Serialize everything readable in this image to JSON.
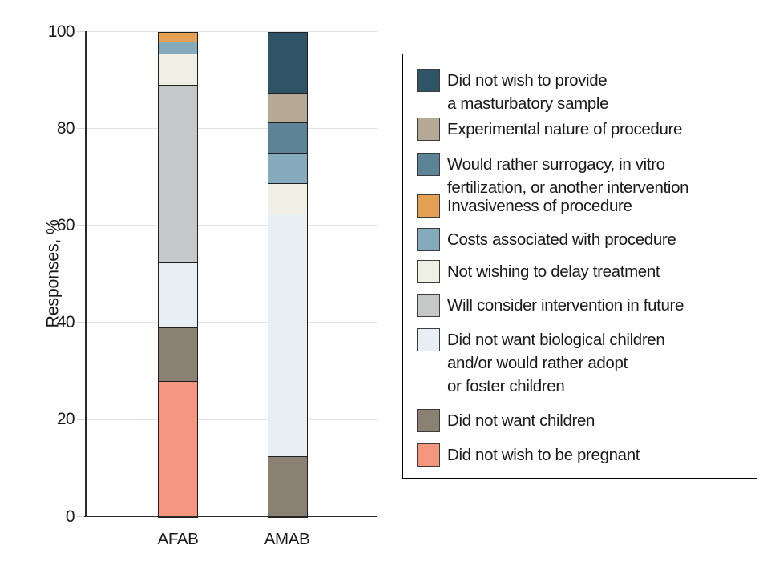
{
  "figure": {
    "background": "#ffffff",
    "text_color": "#1a1a1a",
    "ylabel": "Responses, %",
    "yticks": [
      0,
      20,
      40,
      60,
      80,
      100
    ],
    "x_category_labels": [
      "AFAB",
      "AMAB"
    ]
  },
  "chart_data": {
    "type": "bar",
    "stacked": true,
    "title": "",
    "xlabel": "",
    "ylabel": "Responses, %",
    "ylim": [
      0,
      100
    ],
    "grid": "horizontal",
    "legend_position": "right",
    "categories": [
      "AFAB",
      "AMAB"
    ],
    "series": [
      {
        "key": "masturbatory-sample",
        "name": "Did not wish to provide a masturbatory sample",
        "legend_label": "Did not wish to provide\na masturbatory sample",
        "color": "#2E5466",
        "values": [
          0,
          12.5
        ]
      },
      {
        "key": "experimental-nature",
        "name": "Experimental nature of procedure",
        "legend_label": "Experimental nature of procedure",
        "color": "#B3A995",
        "values": [
          0,
          6.25
        ]
      },
      {
        "key": "surrogacy-ivf-other",
        "name": "Would rather surrogacy, in vitro fertilization, or another intervention",
        "legend_label": "Would rather surrogacy, in vitro\nfertilization, or another intervention",
        "color": "#5C8396",
        "values": [
          0,
          6.25
        ]
      },
      {
        "key": "invasiveness",
        "name": "Invasiveness of procedure",
        "legend_label": "Invasiveness of procedure",
        "color": "#E4A053",
        "values": [
          2,
          0
        ]
      },
      {
        "key": "costs",
        "name": "Costs associated with procedure",
        "legend_label": "Costs associated with procedure",
        "color": "#84AABB",
        "values": [
          2.5,
          6.25
        ]
      },
      {
        "key": "delay-treatment",
        "name": "Not wishing to delay treatment",
        "legend_label": "Not wishing to delay treatment",
        "color": "#F0EFE3",
        "values": [
          6.5,
          6.25
        ]
      },
      {
        "key": "consider-future",
        "name": "Will consider intervention in future",
        "legend_label": "Will consider intervention in future",
        "color": "#C6C7C9",
        "values": [
          36.5,
          0
        ]
      },
      {
        "key": "no-biological-children",
        "name": "Did not want biological children and/or would rather adopt or foster children",
        "legend_label": "Did not want biological children\nand/or would rather adopt\nor foster children",
        "color": "#E7EFF4",
        "values": [
          13.5,
          50
        ]
      },
      {
        "key": "no-children",
        "name": "Did not want children",
        "legend_label": "Did not want children",
        "color": "#8A8173",
        "values": [
          11,
          12.5
        ]
      },
      {
        "key": "no-pregnancy",
        "name": "Did not wish to be pregnant",
        "legend_label": "Did not wish to be pregnant",
        "color": "#F4957D",
        "values": [
          28,
          0
        ]
      }
    ]
  }
}
